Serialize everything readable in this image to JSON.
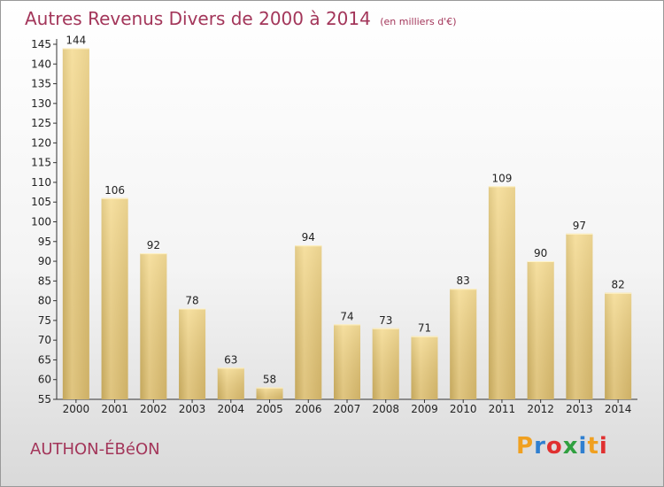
{
  "location": "AUTHON-ÉBéON",
  "logo": {
    "letters": [
      "P",
      "r",
      "o",
      "x",
      "i",
      "t",
      "i"
    ],
    "colors": [
      "#f0a020",
      "#2f7fd0",
      "#e03030",
      "#30a040",
      "#2f7fd0",
      "#f0a020",
      "#e03030"
    ]
  },
  "chart_data": {
    "type": "bar",
    "title": "Autres Revenus Divers de 2000 à 2014",
    "subtitle": "(en milliers d'€)",
    "categories": [
      "2000",
      "2001",
      "2002",
      "2003",
      "2004",
      "2005",
      "2006",
      "2007",
      "2008",
      "2009",
      "2010",
      "2011",
      "2012",
      "2013",
      "2014"
    ],
    "values": [
      144,
      106,
      92,
      78,
      63,
      58,
      94,
      74,
      73,
      71,
      83,
      109,
      90,
      97,
      82
    ],
    "ylim": [
      55,
      145
    ],
    "yticks": [
      55,
      60,
      65,
      70,
      75,
      80,
      85,
      90,
      95,
      100,
      105,
      110,
      115,
      120,
      125,
      130,
      135,
      140,
      145
    ],
    "grid": false,
    "bar_color": "#e9cf85"
  }
}
